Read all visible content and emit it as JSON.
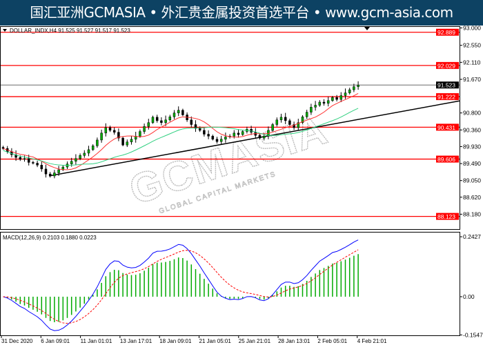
{
  "banner": {
    "text": "国汇亚洲GCMASIA • 外汇贵金属投资首选平台 • www.gcm-asia.com"
  },
  "watermark": {
    "text": "GCMASIA",
    "sub": "GLOBAL CAPITAL MARKETS"
  },
  "colors": {
    "banner": "#0d4263",
    "level_line": "#ff0000",
    "trendline": "#000000",
    "bull": "#00aa00",
    "bear": "#000000",
    "ma_fast": "#ff3030",
    "ma_slow": "#30d080",
    "macd": "#0000ff",
    "signal": "#ff0000",
    "histogram": "#00aa00"
  },
  "chart_data": [
    {
      "type": "candlestick",
      "title": "DOLLAR_INDX,H4  91.525 91.527 91.517 91.523",
      "ylim": [
        87.74,
        93.0
      ],
      "yticks": [
        "93.000",
        "92.550",
        "92.110",
        "91.670",
        "90.800",
        "90.360",
        "89.930",
        "89.490",
        "89.050",
        "88.620",
        "88.180",
        "87.740"
      ],
      "current_price": "91.523",
      "levels": [
        "92.889",
        "92.029",
        "91.222",
        "90.431",
        "89.606",
        "88.123"
      ],
      "trendline": {
        "from": [
          0,
          89.17
        ],
        "to": [
          84,
          90.87
        ]
      },
      "closes": [
        89.88,
        89.8,
        89.72,
        89.65,
        89.6,
        89.62,
        89.52,
        89.5,
        89.45,
        89.35,
        89.22,
        89.17,
        89.25,
        89.33,
        89.4,
        89.48,
        89.55,
        89.62,
        89.7,
        89.76,
        89.85,
        89.95,
        90.1,
        90.28,
        90.42,
        90.35,
        90.3,
        90.15,
        89.97,
        90.05,
        90.12,
        90.2,
        90.32,
        90.45,
        90.55,
        90.69,
        90.6,
        90.55,
        90.62,
        90.7,
        90.8,
        90.87,
        90.75,
        90.62,
        90.5,
        90.4,
        90.35,
        90.25,
        90.2,
        90.12,
        90.06,
        90.12,
        90.18,
        90.2,
        90.28,
        90.24,
        90.32,
        90.38,
        90.3,
        90.22,
        90.15,
        90.2,
        90.35,
        90.5,
        90.62,
        90.69,
        90.6,
        90.5,
        90.42,
        90.55,
        90.7,
        90.82,
        90.95,
        91.0,
        91.08,
        91.05,
        91.12,
        91.2,
        91.15,
        91.25,
        91.32,
        91.4,
        91.48,
        91.52
      ],
      "xticks": [
        "31 Dec 2020",
        "6 Jan 09:01",
        "11 Jan 01:01",
        "13 Jan 17:01",
        "18 Jan 09:01",
        "21 Jan 05:01",
        "25 Jan 21:01",
        "28 Jan 13:01",
        "2 Feb 05:01",
        "4 Feb 21:01"
      ]
    },
    {
      "type": "macd",
      "title": "MACD(12,26,9) 0.2103 0.1880 0.0223",
      "ylim": [
        -0.1547,
        0.2427
      ],
      "yticks": [
        "0.2427",
        "0.00",
        "-0.1547"
      ]
    }
  ]
}
